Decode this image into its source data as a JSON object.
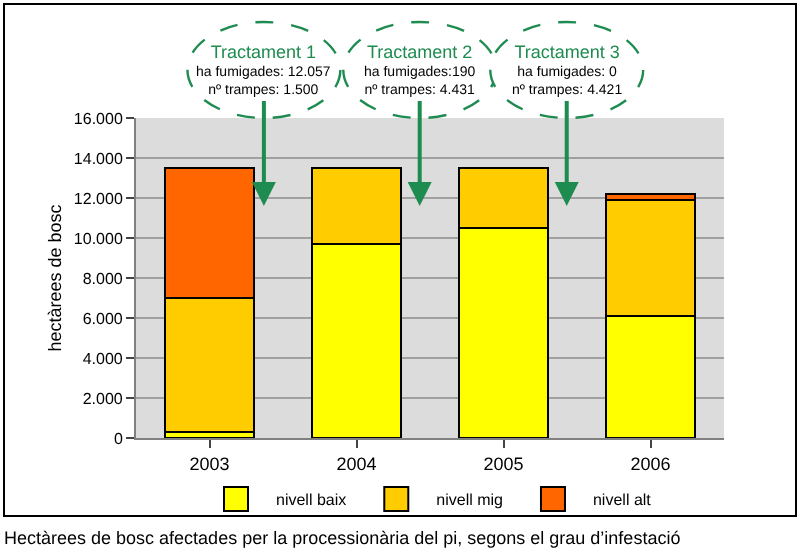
{
  "chart_data": {
    "type": "bar",
    "stacked": true,
    "ylabel": "hectàrees de bosc",
    "categories": [
      "2003",
      "2004",
      "2005",
      "2006"
    ],
    "series": [
      {
        "name": "nivell baix",
        "color": "#ffff00",
        "values": [
          300,
          9700,
          10500,
          6100
        ]
      },
      {
        "name": "nivell mig",
        "color": "#ffcc00",
        "values": [
          6700,
          3800,
          3000,
          5800
        ]
      },
      {
        "name": "nivell alt",
        "color": "#ff6600",
        "values": [
          6500,
          null,
          null,
          300
        ]
      }
    ],
    "ylim": [
      0,
      16000
    ],
    "yticks": [
      {
        "value": 0,
        "label": "0"
      },
      {
        "value": 2000,
        "label": "2.000"
      },
      {
        "value": 4000,
        "label": "4.000"
      },
      {
        "value": 6000,
        "label": "6.000"
      },
      {
        "value": 8000,
        "label": "8.000"
      },
      {
        "value": 10000,
        "label": "10.000"
      },
      {
        "value": 12000,
        "label": "12.000"
      },
      {
        "value": 14000,
        "label": "14.000"
      },
      {
        "value": 16000,
        "label": "16.000"
      }
    ],
    "grid": "y",
    "legend": "bottom",
    "annotations": [
      "Tractament 1\nha fumigades: 12.057\nnº trampes: 1.500",
      "Tractament 2\nha fumigades:190\nnº trampes: 4.431",
      "Tractament 3\nha fumigades: 0\nnº trampes: 4.421",
      "Hectàrees de bosc afectades per la processionària del pi, segons el grau d’infestació"
    ]
  }
}
